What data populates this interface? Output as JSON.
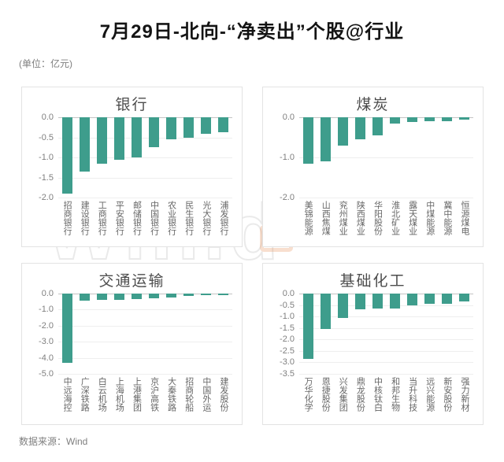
{
  "page": {
    "title": "7月29日-北向-“净卖出”个股@行业",
    "unit_note": "(单位：亿元)",
    "source": "数据来源：Wind",
    "watermark": "Win.d"
  },
  "colors": {
    "bar": "#3e9d8c",
    "gridline": "#eeeeee",
    "zero_line": "#c4c4c4",
    "tick_text": "#7f7f7f",
    "category_text": "#666666",
    "panel_border": "#e3e3e3"
  },
  "chart_data": [
    {
      "type": "bar",
      "title": "银行",
      "categories": [
        "招商银行",
        "建设银行",
        "工商银行",
        "平安银行",
        "邮储银行",
        "中国银行",
        "农业银行",
        "民生银行",
        "光大银行",
        "浦发银行"
      ],
      "values": [
        -1.9,
        -1.35,
        -1.15,
        -1.05,
        -1.0,
        -0.75,
        -0.55,
        -0.5,
        -0.42,
        -0.38
      ],
      "yticks": [
        "0.0",
        "-0.5",
        "-1.0",
        "-1.5",
        "-2.0"
      ],
      "ylim": [
        -2.0,
        0.0
      ],
      "xlabel": "",
      "ylabel": "",
      "grid": true,
      "legend": false
    },
    {
      "type": "bar",
      "title": "煤炭",
      "categories": [
        "美锦能源",
        "山西焦煤",
        "兖州煤业",
        "陕西煤业",
        "华阳股份",
        "淮北矿业",
        "露天煤业",
        "中煤能源",
        "冀中能源",
        "恒源煤电"
      ],
      "values": [
        -1.15,
        -1.1,
        -0.7,
        -0.55,
        -0.45,
        -0.15,
        -0.12,
        -0.1,
        -0.1,
        -0.06
      ],
      "yticks": [
        "0.0",
        "-1.0",
        "-2.0"
      ],
      "ylim": [
        -2.0,
        0.0
      ],
      "xlabel": "",
      "ylabel": "",
      "grid": true,
      "legend": false
    },
    {
      "type": "bar",
      "title": "交通运输",
      "categories": [
        "中远海控",
        "广深铁路",
        "白云机场",
        "上海机场",
        "上港集团",
        "京沪高铁",
        "大秦铁路",
        "招商轮船",
        "中国外运",
        "建发股份"
      ],
      "values": [
        -4.3,
        -0.45,
        -0.4,
        -0.38,
        -0.32,
        -0.3,
        -0.25,
        -0.15,
        -0.1,
        -0.08
      ],
      "yticks": [
        "0.0",
        "-1.0",
        "-2.0",
        "-3.0",
        "-4.0",
        "-5.0"
      ],
      "ylim": [
        -5.0,
        0.0
      ],
      "xlabel": "",
      "ylabel": "",
      "grid": true,
      "legend": false
    },
    {
      "type": "bar",
      "title": "基础化工",
      "categories": [
        "万华化学",
        "恩捷股份",
        "兴发集团",
        "鼎龙股份",
        "中核钛白",
        "和邦生物",
        "当升科技",
        "远兴能源",
        "新安股份",
        "强力新材"
      ],
      "values": [
        -2.85,
        -1.55,
        -1.05,
        -0.7,
        -0.65,
        -0.65,
        -0.5,
        -0.45,
        -0.45,
        -0.35
      ],
      "yticks": [
        "0.0",
        "-0.5",
        "-1.0",
        "-1.5",
        "-2.0",
        "-2.5",
        "-3.0",
        "-3.5"
      ],
      "ylim": [
        -3.5,
        0.0
      ],
      "xlabel": "",
      "ylabel": "",
      "grid": true,
      "legend": false
    }
  ]
}
